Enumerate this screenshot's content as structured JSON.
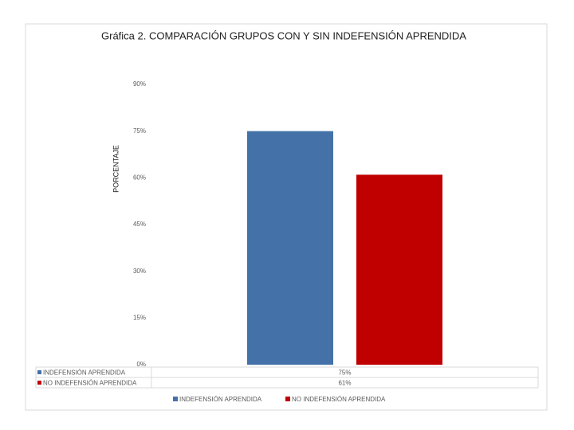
{
  "chart_data": {
    "type": "bar",
    "title": "Gráfica 2. COMPARACIÓN GRUPOS CON Y SIN INDEFENSIÓN APRENDIDA",
    "y_label": "PORCENTAJE",
    "categories": [
      null
    ],
    "series": [
      {
        "name": "INDEFENSIÓN APRENDIDA",
        "color": "#4472a8",
        "values": [
          75
        ],
        "value_labels": [
          "75%"
        ]
      },
      {
        "name": "NO INDEFENSIÓN APRENDIDA",
        "color": "#c00000",
        "values": [
          61
        ],
        "value_labels": [
          "61%"
        ]
      }
    ],
    "ylim": [
      0,
      90
    ],
    "yticks": [
      {
        "value": 0,
        "label": "0%"
      },
      {
        "value": 15,
        "label": "15%"
      },
      {
        "value": 30,
        "label": "30%"
      },
      {
        "value": 45,
        "label": "45%"
      },
      {
        "value": 60,
        "label": "60%"
      },
      {
        "value": 75,
        "label": "75%"
      },
      {
        "value": 90,
        "label": "90%"
      }
    ],
    "grid": false,
    "legend": "bottom"
  }
}
